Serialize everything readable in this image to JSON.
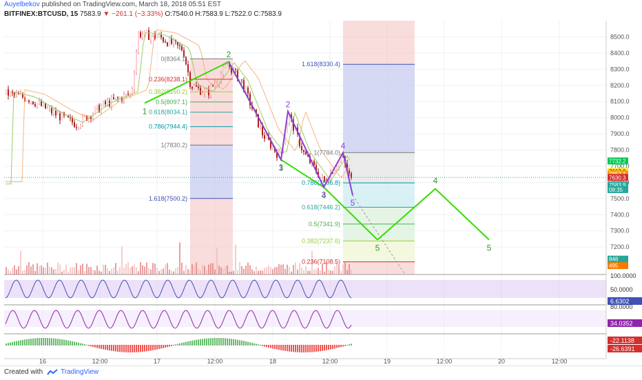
{
  "header": {
    "author": "Auyelbekov",
    "published": " published on TradingView.com, March 18, 2018 05:51 EST",
    "symbol": "BITFINEX:BTCUSD, 15",
    "last": "7583.9",
    "change": "−261.1 (−3.33%)",
    "ohlc": "O:7540.0 H:7583.9 L:7522.0 C:7583.9"
  },
  "footer": {
    "created": "Created with",
    "brand": "TradingView"
  },
  "colors": {
    "wave_green": "#33dd00",
    "wave_purple": "#8e3fd1",
    "fib_blue": "#3f51b5",
    "fib_red": "#d32f2f",
    "up_candle": "#ef9a9a",
    "down_candle": "#b71c1c"
  },
  "chart_data": {
    "type": "line",
    "description_axis": "price",
    "ylim": [
      7030,
      8600
    ],
    "y_ticks": [
      8500,
      8400,
      8300,
      8200,
      8100,
      8000,
      7900,
      7800,
      7700,
      7600,
      7500,
      7400,
      7300,
      7200
    ],
    "y_tick_labels": [
      "8500.0",
      "8400.0",
      "8300.0",
      "8200.0",
      "8100.0",
      "8000.0",
      "7900.0",
      "7800.0",
      "7700.0",
      "7600.0",
      "7500.0",
      "7400.0",
      "7300.0",
      "7200.0"
    ],
    "x_tick_labels": [
      "16",
      "12:00",
      "17",
      "12:00",
      "18",
      "12:00",
      "19",
      "12:00",
      "20",
      "12:00"
    ],
    "grid": true,
    "price_scale_badges": [
      {
        "label": "7732.2",
        "value": 7732.2,
        "color": "#00c853"
      },
      {
        "label": "7667.9",
        "value": 7667.9,
        "color": "#ffeb3b"
      },
      {
        "label": "7652.1",
        "value": 7652.1,
        "color": "#ff9800"
      },
      {
        "label": "7630.3",
        "value": 7630.3,
        "color": "#d32f2f"
      },
      {
        "label": "7583.9",
        "value": 7583.9,
        "color": "#26a69a"
      },
      {
        "label": "08:35",
        "value": 7555,
        "color": "#26a69a"
      },
      {
        "label": "848",
        "value": 7125,
        "color": "#26a69a"
      },
      {
        "label": "495",
        "value": 7085,
        "color": "#f57c00"
      }
    ],
    "fib_retracement_1": {
      "levels": [
        {
          "label": "0(8364.1)",
          "value": 8364.1,
          "color": "#787878"
        },
        {
          "label": "0.236(8238.1)",
          "value": 8238.1,
          "color": "#d32f2f"
        },
        {
          "label": "0.382(8160.2)",
          "value": 8160.2,
          "color": "#9acd32"
        },
        {
          "label": "0.5(8097.1)",
          "value": 8097.1,
          "color": "#4caf50"
        },
        {
          "label": "0.618(8034.1)",
          "value": 8034.1,
          "color": "#26a69a"
        },
        {
          "label": "0.786(7944.4)",
          "value": 7944.4,
          "color": "#0097a7"
        },
        {
          "label": "1(7830.2)",
          "value": 7830.2,
          "color": "#787878"
        },
        {
          "label": "1.618(7500.2)",
          "value": 7500.2,
          "color": "#3f51b5"
        }
      ]
    },
    "fib_retracement_2": {
      "levels": [
        {
          "label": "1.618(8330.4)",
          "value": 8330.4,
          "color": "#3f51b5"
        },
        {
          "label": "1(7784.0)",
          "value": 7784.0,
          "color": "#787878"
        },
        {
          "label": "0.786(7596.8)",
          "value": 7596.8,
          "color": "#0097a7"
        },
        {
          "label": "0.618(7446.2)",
          "value": 7446.2,
          "color": "#26a69a"
        },
        {
          "label": "0.5(7341.9)",
          "value": 7341.9,
          "color": "#4caf50"
        },
        {
          "label": "0.382(7237.6)",
          "value": 7237.6,
          "color": "#9acd32"
        },
        {
          "label": "0.236(7108.5)",
          "value": 7108.5,
          "color": "#d32f2f"
        }
      ]
    },
    "wave_green_main": {
      "points": [
        {
          "label": "1",
          "value": 8090
        },
        {
          "label": "2",
          "value": 8345
        },
        {
          "label": "3",
          "value": 7740
        },
        {
          "label": "4",
          "value": 7570
        },
        {
          "label": "5",
          "value": 7245
        }
      ]
    },
    "wave_purple": {
      "points": [
        {
          "label": "",
          "value": 8345
        },
        {
          "label": "1",
          "value": 7740
        },
        {
          "label": "2",
          "value": 8040
        },
        {
          "label": "3",
          "value": 7570
        },
        {
          "label": "4",
          "value": 7784
        },
        {
          "label": "5",
          "value": 7520
        }
      ]
    },
    "wave_green_projection": {
      "points": [
        {
          "label": "3",
          "value": 7245
        },
        {
          "label": "4",
          "value": 7560
        },
        {
          "label": "5",
          "value": 7245
        }
      ]
    },
    "indicators": [
      {
        "name": "stoch",
        "label": "100.0000",
        "upper_band": 80,
        "lower_band": 20,
        "scale": [
          "100.0000",
          "50.0000"
        ],
        "last": "6.6302"
      },
      {
        "name": "rsi",
        "label": "80.0000",
        "last": "34.0352"
      },
      {
        "name": "macd",
        "values": [
          "-22.1138",
          "-26.6391"
        ]
      }
    ]
  }
}
